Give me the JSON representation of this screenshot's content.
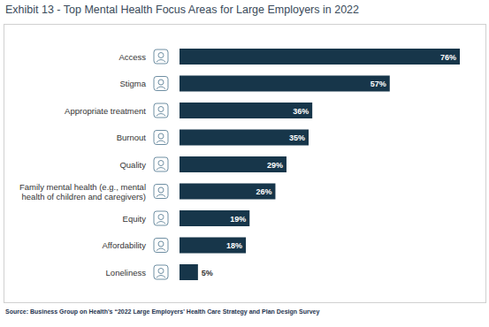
{
  "chart_data": {
    "type": "bar",
    "orientation": "horizontal",
    "title": "Exhibit 13 - Top Mental Health Focus Areas for Large Employers in 2022",
    "categories": [
      "Access",
      "Stigma",
      "Appropriate treatment",
      "Burnout",
      "Quality",
      "Family mental health (e.g., mental health of children and caregivers)",
      "Equity",
      "Affordability",
      "Loneliness"
    ],
    "values": [
      76,
      57,
      36,
      35,
      29,
      26,
      19,
      18,
      5
    ],
    "value_labels": [
      "76%",
      "57%",
      "36%",
      "35%",
      "29%",
      "26%",
      "19%",
      "18%",
      "5%"
    ],
    "data_labels": true,
    "tick_labels": "y",
    "color": "#17364a",
    "xlim": [
      0,
      76
    ],
    "grid": false,
    "source": "Source: Business Group on Health's “2022 Large Employers' Health Care Strategy and Plan Design Survey"
  }
}
